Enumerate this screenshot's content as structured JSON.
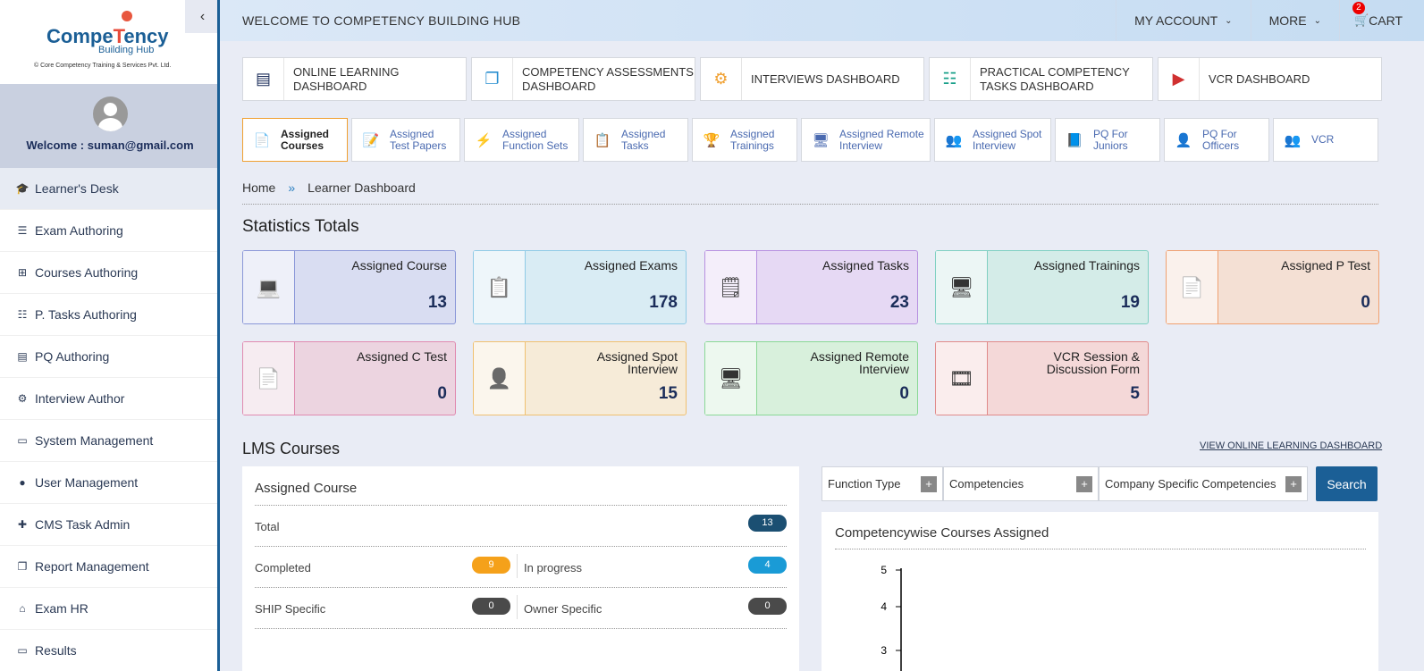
{
  "brand": {
    "line1a": "Compe",
    "line1b": "T",
    "line1c": "ency",
    "line2": "Building Hub",
    "line3": "© Core Competency Training & Services Pvt. Ltd."
  },
  "sidebar": {
    "welcome": "Welcome : suman@gmail.com",
    "items": [
      {
        "label": "Learner's Desk",
        "icon": "graduation-cap-icon"
      },
      {
        "label": "Exam Authoring",
        "icon": "list-icon"
      },
      {
        "label": "Courses Authoring",
        "icon": "sitemap-icon"
      },
      {
        "label": "P. Tasks Authoring",
        "icon": "tasks-icon"
      },
      {
        "label": "PQ Authoring",
        "icon": "book-icon"
      },
      {
        "label": "Interview Author",
        "icon": "cogs-icon"
      },
      {
        "label": "System Management",
        "icon": "desktop-icon"
      },
      {
        "label": "User Management",
        "icon": "user-icon"
      },
      {
        "label": "CMS Task Admin",
        "icon": "user-plus-icon"
      },
      {
        "label": "Report Management",
        "icon": "copy-icon"
      },
      {
        "label": "Exam HR",
        "icon": "bank-icon"
      },
      {
        "label": "Results",
        "icon": "monitor-icon"
      }
    ]
  },
  "topbar": {
    "title": "WELCOME TO COMPETENCY BUILDING HUB",
    "account": "MY ACCOUNT",
    "more": "MORE",
    "cart": "CART",
    "cart_count": "2"
  },
  "dashboards": [
    {
      "l1": "ONLINE LEARNING",
      "l2": "DASHBOARD",
      "icon": "book-icon",
      "color": "#1b2d5a"
    },
    {
      "l1": "COMPETENCY ASSESSMENTS",
      "l2": "DASHBOARD",
      "icon": "copy-icon",
      "color": "#2a8fd0"
    },
    {
      "l1": "INTERVIEWS DASHBOARD",
      "l2": "",
      "icon": "cogs-icon",
      "color": "#f0a030"
    },
    {
      "l1": "PRACTICAL COMPETENCY",
      "l2": "TASKS DASHBOARD",
      "icon": "tasks-icon",
      "color": "#1aa08a"
    },
    {
      "l1": "VCR DASHBOARD",
      "l2": "",
      "icon": "video-file-icon",
      "color": "#d03030"
    }
  ],
  "tabs": [
    {
      "l1": "Assigned",
      "l2": "Courses",
      "w": 118
    },
    {
      "l1": "Assigned",
      "l2": "Test Papers",
      "w": 122
    },
    {
      "l1": "Assigned",
      "l2": "Function Sets",
      "w": 129
    },
    {
      "l1": "Assigned",
      "l2": "Tasks",
      "w": 118
    },
    {
      "l1": "Assigned",
      "l2": "Trainings",
      "w": 118
    },
    {
      "l1": "Assigned Remote",
      "l2": "Interview",
      "w": 145
    },
    {
      "l1": "Assigned Spot",
      "l2": "Interview",
      "w": 131
    },
    {
      "l1": "PQ For",
      "l2": "Juniors",
      "w": 118
    },
    {
      "l1": "PQ For",
      "l2": "Officers",
      "w": 118
    },
    {
      "l1": "VCR",
      "l2": "",
      "w": 118
    }
  ],
  "breadcrumb": {
    "home": "Home",
    "sep": "»",
    "current": "Learner Dashboard"
  },
  "stats_title": "Statistics Totals",
  "stats": [
    {
      "label": "Assigned Course",
      "value": "13",
      "bg": "#d9ddf2",
      "border": "#8a97d8"
    },
    {
      "label": "Assigned Exams",
      "value": "178",
      "bg": "#d9ecf4",
      "border": "#8fcbe6"
    },
    {
      "label": "Assigned Tasks",
      "value": "23",
      "bg": "#e6d9f4",
      "border": "#b790e0"
    },
    {
      "label": "Assigned Trainings",
      "value": "19",
      "bg": "#d4ece8",
      "border": "#7fd0c2"
    },
    {
      "label": "Assigned P Test",
      "value": "0",
      "bg": "#f4e0d4",
      "border": "#f0a070"
    },
    {
      "label": "Assigned C Test",
      "value": "0",
      "bg": "#ecd4e0",
      "border": "#e08ab0"
    },
    {
      "label": "Assigned Spot Interview",
      "value": "15",
      "bg": "#f6ebd8",
      "border": "#f0c070"
    },
    {
      "label": "Assigned Remote Interview",
      "value": "0",
      "bg": "#d8f0dc",
      "border": "#8ad896"
    },
    {
      "label": "VCR Session & Discussion Form",
      "value": "5",
      "bg": "#f4d8d8",
      "border": "#e08a8a"
    }
  ],
  "lms": {
    "title": "LMS Courses",
    "view_link": "VIEW ONLINE LEARNING DASHBOARD"
  },
  "assigned_course": {
    "title": "Assigned Course",
    "total_label": "Total",
    "total": "13",
    "completed_label": "Completed",
    "completed": "9",
    "inprogress_label": "In progress",
    "inprogress": "4",
    "ship_label": "SHIP Specific",
    "ship": "0",
    "owner_label": "Owner Specific",
    "owner": "0"
  },
  "filters": {
    "f1": "Function Type",
    "f2": "Competencies",
    "f3": "Company Specific Competencies",
    "search": "Search"
  },
  "competency_chart": {
    "title": "Competencywise Courses Assigned"
  },
  "chart_data": {
    "type": "bar",
    "title": "Competencywise Courses Assigned",
    "categories": [],
    "values": [],
    "yticks": [
      "5",
      "4",
      "3"
    ]
  }
}
